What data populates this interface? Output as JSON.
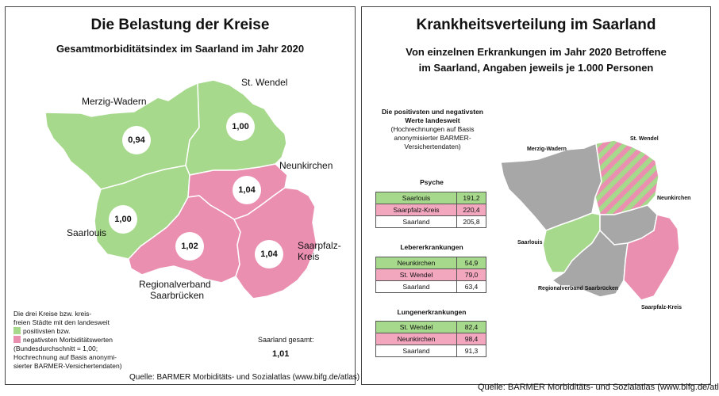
{
  "colors": {
    "positive": "#a6d98b",
    "negative": "#ea8fb0",
    "neutral": "#a7a7a7"
  },
  "left": {
    "title": "Die Belastung der Kreise",
    "subtitle": "Gesamtmorbiditätsindex im Saarland im Jahr 2020",
    "regions": [
      {
        "name": "Merzig-Wadern",
        "value": "0,94",
        "status": "positive"
      },
      {
        "name": "St. Wendel",
        "value": "1,00",
        "status": "positive"
      },
      {
        "name": "Neunkirchen",
        "value": "1,04",
        "status": "negative"
      },
      {
        "name": "Saarlouis",
        "value": "1,00",
        "status": "positive"
      },
      {
        "name": "Regionalverband Saarbrücken",
        "value": "1,02",
        "status": "negative"
      },
      {
        "name": "Saarpfalz-Kreis",
        "value": "1,04",
        "status": "negative"
      }
    ],
    "map_labels": {
      "merzig": "Merzig-Wadern",
      "stwendel": "St. Wendel",
      "neunkirchen": "Neunkirchen",
      "saarlouis": "Saarlouis",
      "saarbruecken_1": "Regionalverband",
      "saarbruecken_2": "Saarbrücken",
      "saarpfalz_1": "Saarpfalz-",
      "saarpfalz_2": "Kreis"
    },
    "legend": {
      "line1": "Die drei Kreise bzw. kreis-",
      "line2": "freien Städte mit den landesweit",
      "positive": "positivsten bzw.",
      "negative": "negativsten Morbiditätswerten",
      "line5": "(Bundesdurchschnitt = 1,00;",
      "line6": "Hochrechnung auf Basis anonymi-",
      "line7": "sierter BARMER-Versichertendaten)"
    },
    "total_label": "Saarland gesamt:",
    "total_value": "1,01",
    "source": "Quelle: BARMER Morbiditäts- und Sozialatlas (www.bifg.de/atlas)"
  },
  "right": {
    "title": "Krankheitsverteilung im Saarland",
    "subtitle_1": "Von einzelnen Erkrankungen im Jahr 2020 Betroffene",
    "subtitle_2": "im Saarland, Angaben jeweils je 1.000 Personen",
    "intro_1": "Die positivsten und negativsten",
    "intro_2": "Werte landesweit",
    "intro_3": "(Hochrechnungen auf Basis",
    "intro_4": "anonymisierter BARMER-",
    "intro_5": "Versichertendaten)",
    "sections": [
      {
        "title": "Psyche",
        "rows": [
          {
            "name": "Saarlouis",
            "value": "191,2",
            "status": "positive"
          },
          {
            "name": "Saarpfalz-Kreis",
            "value": "220,4",
            "status": "negative"
          },
          {
            "name": "Saarland",
            "value": "205,8",
            "status": "neutral"
          }
        ]
      },
      {
        "title": "Lebererkrankungen",
        "rows": [
          {
            "name": "Neunkirchen",
            "value": "54,9",
            "status": "positive"
          },
          {
            "name": "St. Wendel",
            "value": "79,0",
            "status": "negative"
          },
          {
            "name": "Saarland",
            "value": "63,4",
            "status": "neutral"
          }
        ]
      },
      {
        "title": "Lungenerkrankungen",
        "rows": [
          {
            "name": "St. Wendel",
            "value": "82,4",
            "status": "positive"
          },
          {
            "name": "Neunkirchen",
            "value": "98,4",
            "status": "negative"
          },
          {
            "name": "Saarland",
            "value": "91,3",
            "status": "neutral"
          }
        ]
      }
    ],
    "map_labels": {
      "merzig": "Merzig-Wadern",
      "stwendel": "St. Wendel",
      "neunkirchen": "Neunkirchen",
      "saarlouis": "Saarlouis",
      "saarbruecken": "Regionalverband Saarbrücken",
      "saarpfalz": "Saarpfalz-Kreis"
    },
    "source": "Quelle: BARMER Morbiditäts- und Sozialatlas (www.bifg.de/atlas)"
  }
}
